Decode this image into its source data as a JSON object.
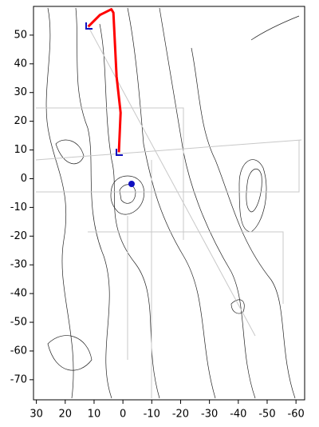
{
  "chart_data": {
    "type": "line",
    "xlim": [
      31,
      -63
    ],
    "ylim": [
      -77,
      60
    ],
    "xticks": [
      30,
      20,
      10,
      0,
      -10,
      -20,
      -30,
      -40,
      -50,
      -60
    ],
    "yticks": [
      50,
      40,
      30,
      20,
      10,
      0,
      -10,
      -20,
      -30,
      -40,
      -50,
      -60,
      -70
    ],
    "series": [
      {
        "color": "#ff0000",
        "x": [
          12,
          8,
          4,
          3.3,
          2.2,
          0.8,
          1.4
        ],
        "values": [
          53,
          57,
          59,
          57.8,
          35.6,
          23,
          9.2
        ]
      }
    ]
  }
}
